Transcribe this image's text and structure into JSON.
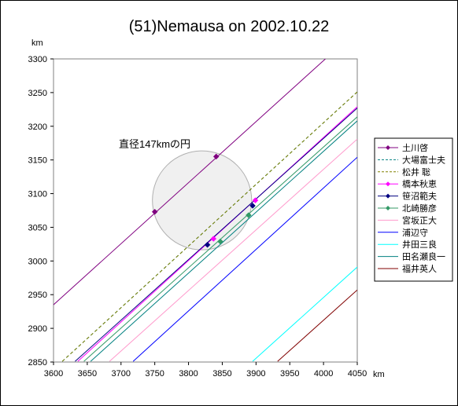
{
  "chart_data": {
    "type": "line",
    "title": "(51)Nemausa on 2002.10.22",
    "xlabel": "km",
    "ylabel": "km",
    "xlim": [
      3600,
      4050
    ],
    "ylim": [
      2850,
      3300
    ],
    "xticks": [
      3600,
      3650,
      3700,
      3750,
      3800,
      3850,
      3900,
      3950,
      4000,
      4050
    ],
    "yticks": [
      2850,
      2900,
      2950,
      3000,
      3050,
      3100,
      3150,
      3200,
      3250,
      3300
    ],
    "grid": false,
    "legend_position": "right",
    "annotation": "直径147kmの円",
    "circle": {
      "cx": 3820,
      "cy": 3090,
      "r": 73.5,
      "fill": "#f0f0f0",
      "stroke": "#b0b0b0"
    },
    "series": [
      {
        "name": "土川啓",
        "color": "#800080",
        "style": "solid",
        "marker": "diamond",
        "line": [
          [
            3600,
            2935
          ],
          [
            4005,
            3302
          ]
        ],
        "points": [
          [
            3750,
            3073
          ],
          [
            3841,
            3155
          ]
        ]
      },
      {
        "name": "大場富士夫",
        "color": "#008080",
        "style": "dashed",
        "marker": "none",
        "line": [
          [
            3613,
            2851
          ],
          [
            4050,
            3251
          ]
        ],
        "points": []
      },
      {
        "name": "松井 聡",
        "color": "#808000",
        "style": "dashed",
        "marker": "none",
        "line": [
          [
            3613,
            2851
          ],
          [
            4050,
            3251
          ]
        ],
        "points": []
      },
      {
        "name": "橋本秋恵",
        "color": "#ff00ff",
        "style": "solid",
        "marker": "diamond",
        "line": [
          [
            3636,
            2851
          ],
          [
            4050,
            3229
          ]
        ],
        "points": [
          [
            3837,
            3033
          ],
          [
            3899,
            3090
          ]
        ]
      },
      {
        "name": "笹沼範夫",
        "color": "#000080",
        "style": "solid",
        "marker": "diamond",
        "line": [
          [
            3632,
            2851
          ],
          [
            4050,
            3227
          ]
        ],
        "points": [
          [
            3828,
            3024
          ],
          [
            3895,
            3082
          ]
        ]
      },
      {
        "name": "北崎勝彦",
        "color": "#339966",
        "style": "solid",
        "marker": "diamond",
        "line": [
          [
            3645,
            2851
          ],
          [
            4050,
            3214
          ]
        ],
        "points": [
          [
            3847,
            3029
          ],
          [
            3889,
            3068
          ]
        ]
      },
      {
        "name": "宮坂正大",
        "color": "#ff99cc",
        "style": "solid",
        "marker": "none",
        "line": [
          [
            3683,
            2851
          ],
          [
            4050,
            3181
          ]
        ],
        "points": []
      },
      {
        "name": "浦辺守",
        "color": "#0000ff",
        "style": "solid",
        "marker": "none",
        "line": [
          [
            3718,
            2851
          ],
          [
            4050,
            3154
          ]
        ],
        "points": []
      },
      {
        "name": "井田三良",
        "color": "#00ffff",
        "style": "solid",
        "marker": "none",
        "line": [
          [
            3895,
            2851
          ],
          [
            4050,
            2991
          ]
        ],
        "points": []
      },
      {
        "name": "田名瀬良一",
        "color": "#008080",
        "style": "solid",
        "marker": "none",
        "line": [
          [
            3655,
            2851
          ],
          [
            4050,
            3208
          ]
        ],
        "points": []
      },
      {
        "name": "福井英人",
        "color": "#800000",
        "style": "solid",
        "marker": "none",
        "line": [
          [
            3932,
            2851
          ],
          [
            4050,
            2957
          ]
        ],
        "points": []
      }
    ]
  }
}
